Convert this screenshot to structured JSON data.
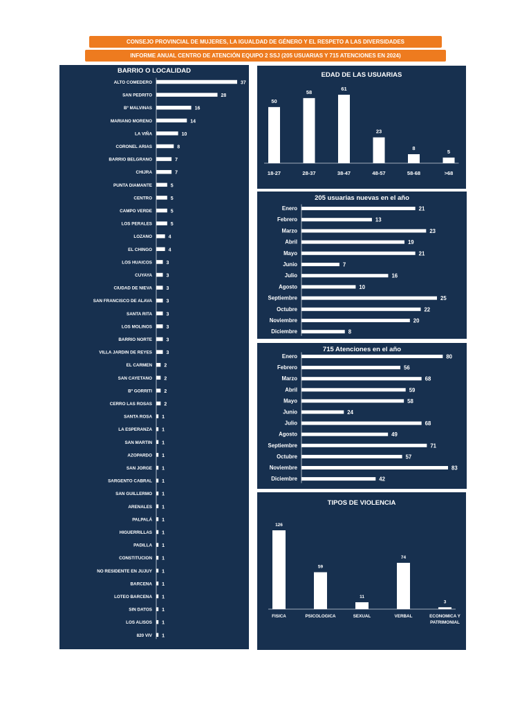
{
  "header": {
    "line1": "CONSEJO PROVINCIAL DE MUJERES, LA IGUALDAD DE GÉNERO Y EL RESPETO A LAS DIVERSIDADES",
    "line2": "INFORME ANUAL CENTRO DE ATENCIÓN EQUIPO 2 SSJ (205 USUARIAS Y 715 ATENCIONES EN 2024)"
  },
  "colors": {
    "panel": "#17304f",
    "bars": "#ffffff",
    "banner": "#ee7b1f"
  },
  "chart_data": [
    {
      "type": "bar",
      "orientation": "horizontal",
      "title": "BARRIO O LOCALIDAD",
      "categories": [
        "ALTO COMEDERO",
        "SAN PEDRITO",
        "Bº MALVINAS",
        "MARIANO MORENO",
        "LA VIÑA",
        "CORONEL ARIAS",
        "BARRIO BELGRANO",
        "CHIJRA",
        "PUNTA DIAMANTE",
        "CENTRO",
        "CAMPO VERDE",
        "LOS PERALES",
        "LOZANO",
        "EL CHINGO",
        "LOS HUAICOS",
        "CUYAYA",
        "CIUDAD DE NIEVA",
        "SAN FRANCISCO DE ALAVA",
        "SANTA RITA",
        "LOS MOLINOS",
        "BARRIO NORTE",
        "VILLA JARDIN DE REYES",
        "EL CARMEN",
        "SAN CAYETANO",
        "Bº GORRITI",
        "CERRO LAS ROSAS",
        "SANTA ROSA",
        "LA ESPERANZA",
        "SAN MARTIN",
        "AZOPARDO",
        "SAN JORGE",
        "SARGENTO CABRAL",
        "SAN GUILLERMO",
        "ARENALES",
        "PALPALÁ",
        "HIGUERRILLAS",
        "PADILLA",
        "CONSTITUCION",
        "NO RESIDENTE EN JUJUY",
        "BARCENA",
        "LOTEO BARCENA",
        "SIN DATOS",
        "LOS ALISOS",
        "820 VIV"
      ],
      "values": [
        37,
        28,
        16,
        14,
        10,
        8,
        7,
        7,
        5,
        5,
        5,
        5,
        4,
        4,
        3,
        3,
        3,
        3,
        3,
        3,
        3,
        3,
        2,
        2,
        2,
        2,
        1,
        1,
        1,
        1,
        1,
        1,
        1,
        1,
        1,
        1,
        1,
        1,
        1,
        1,
        1,
        1,
        1,
        1
      ]
    },
    {
      "type": "bar",
      "title": "EDAD DE LAS USUARIAS",
      "categories": [
        "18-27",
        "28-37",
        "38-47",
        "48-57",
        "58-68",
        ">68"
      ],
      "values": [
        50,
        58,
        61,
        23,
        8,
        5
      ]
    },
    {
      "type": "bar",
      "orientation": "horizontal",
      "title": "205 usuarias nuevas en el año",
      "categories": [
        "Enero",
        "Febrero",
        "Marzo",
        "Abril",
        "Mayo",
        "Junio",
        "Julio",
        "Agosto",
        "Septiembre",
        "Octubre",
        "Noviembre",
        "Diciembre"
      ],
      "values": [
        21,
        13,
        23,
        19,
        21,
        7,
        16,
        10,
        25,
        22,
        20,
        8
      ]
    },
    {
      "type": "bar",
      "orientation": "horizontal",
      "title": "715 Atenciones en el año",
      "categories": [
        "Enero",
        "Febrero",
        "Marzo",
        "Abril",
        "Mayo",
        "Junio",
        "Julio",
        "Agosto",
        "Septiembre",
        "Octubre",
        "Noviembre",
        "Diciembre"
      ],
      "values": [
        80,
        56,
        68,
        59,
        58,
        24,
        68,
        49,
        71,
        57,
        83,
        42
      ]
    },
    {
      "type": "bar",
      "title": "TIPOS DE VIOLENCIA",
      "categories": [
        "FISICA",
        "PSICOLOGICA",
        "SEXUAL",
        "VERBAL",
        "ECONOMICA Y PATRIMONIAL"
      ],
      "values": [
        126,
        59,
        11,
        74,
        3
      ]
    }
  ]
}
